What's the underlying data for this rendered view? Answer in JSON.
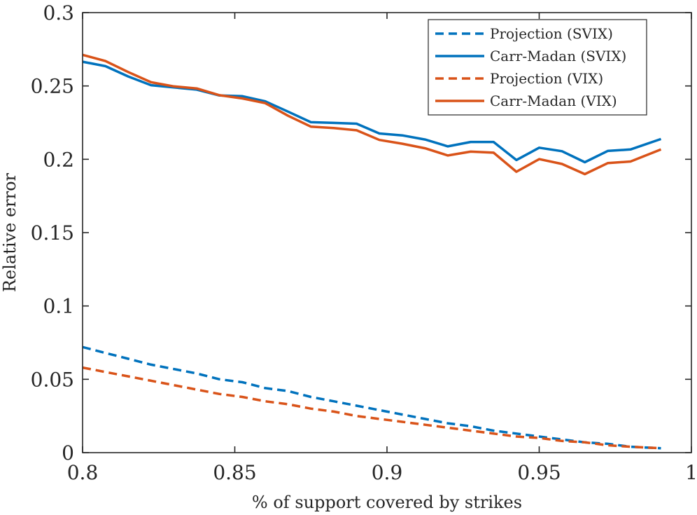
{
  "chart_data": {
    "type": "line",
    "title": "",
    "xlabel": "% of support covered by strikes",
    "ylabel": "Relative error",
    "xlim": [
      0.8,
      1.0
    ],
    "ylim": [
      0,
      0.3
    ],
    "xticks": [
      0.8,
      0.85,
      0.9,
      0.95,
      1.0
    ],
    "xtick_labels": [
      "0.8",
      "0.85",
      "0.9",
      "0.95",
      "1"
    ],
    "yticks": [
      0,
      0.05,
      0.1,
      0.15,
      0.2,
      0.25,
      0.3
    ],
    "ytick_labels": [
      "0",
      "0.05",
      "0.1",
      "0.15",
      "0.2",
      "0.25",
      "0.3"
    ],
    "grid": false,
    "legend_position": "top-right",
    "x": [
      0.8,
      0.8075,
      0.815,
      0.8225,
      0.83,
      0.8375,
      0.845,
      0.8525,
      0.86,
      0.8675,
      0.875,
      0.8825,
      0.89,
      0.8975,
      0.905,
      0.9125,
      0.92,
      0.9275,
      0.935,
      0.9425,
      0.95,
      0.9575,
      0.965,
      0.9725,
      0.98,
      0.99
    ],
    "series": [
      {
        "name": "Projection (SVIX)",
        "color": "#0072BD",
        "style": "dashed",
        "values": [
          0.072,
          0.068,
          0.064,
          0.06,
          0.057,
          0.054,
          0.05,
          0.048,
          0.044,
          0.042,
          0.038,
          0.035,
          0.032,
          0.029,
          0.026,
          0.023,
          0.02,
          0.018,
          0.015,
          0.013,
          0.011,
          0.009,
          0.007,
          0.006,
          0.004,
          0.003
        ]
      },
      {
        "name": "Carr-Madan (SVIX)",
        "color": "#0072BD",
        "style": "solid",
        "values": [
          0.2665,
          0.2635,
          0.2565,
          0.2505,
          0.249,
          0.2475,
          0.2435,
          0.243,
          0.2395,
          0.2325,
          0.2253,
          0.2248,
          0.2243,
          0.2176,
          0.2163,
          0.2135,
          0.2088,
          0.2118,
          0.2118,
          0.1995,
          0.2079,
          0.2055,
          0.198,
          0.2057,
          0.2067,
          0.2138
        ]
      },
      {
        "name": "Projection (VIX)",
        "color": "#D95319",
        "style": "dashed",
        "values": [
          0.058,
          0.055,
          0.052,
          0.049,
          0.046,
          0.043,
          0.04,
          0.038,
          0.035,
          0.033,
          0.03,
          0.028,
          0.025,
          0.023,
          0.021,
          0.019,
          0.017,
          0.015,
          0.013,
          0.011,
          0.01,
          0.008,
          0.007,
          0.005,
          0.004,
          0.003
        ]
      },
      {
        "name": "Carr-Madan (VIX)",
        "color": "#D95319",
        "style": "solid",
        "values": [
          0.2712,
          0.267,
          0.2595,
          0.2525,
          0.2497,
          0.2483,
          0.2437,
          0.2415,
          0.2383,
          0.2297,
          0.2223,
          0.2213,
          0.2198,
          0.2132,
          0.2106,
          0.2075,
          0.2026,
          0.2052,
          0.2045,
          0.1915,
          0.2001,
          0.1968,
          0.1899,
          0.1974,
          0.1985,
          0.2067
        ]
      }
    ]
  }
}
